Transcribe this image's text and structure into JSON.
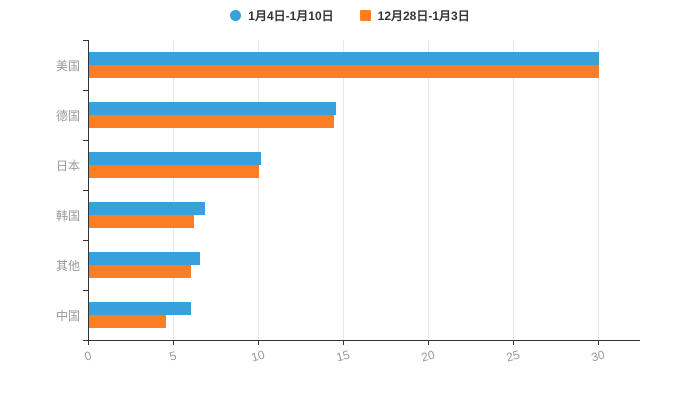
{
  "chart_data": {
    "type": "bar",
    "orientation": "horizontal",
    "title": "",
    "xlabel": "",
    "ylabel": "",
    "categories": [
      "美国",
      "德国",
      "日本",
      "韩国",
      "其他",
      "中国"
    ],
    "series": [
      {
        "name": "1月4日-1月10日",
        "color": "#38a1db",
        "values": [
          30,
          14.5,
          10.1,
          6.8,
          6.5,
          6.0
        ]
      },
      {
        "name": "12月28日-1月3日",
        "color": "#fc7e24",
        "values": [
          30,
          14.4,
          10.0,
          6.2,
          6.0,
          4.5
        ]
      }
    ],
    "xlim": [
      0,
      30
    ],
    "x_ticks": [
      0,
      5,
      10,
      15,
      20,
      25,
      30
    ],
    "grid": true,
    "legend_position": "top",
    "axis_color": "#333333",
    "gridline_color": "#e9e9e9",
    "label_color": "#999999"
  }
}
